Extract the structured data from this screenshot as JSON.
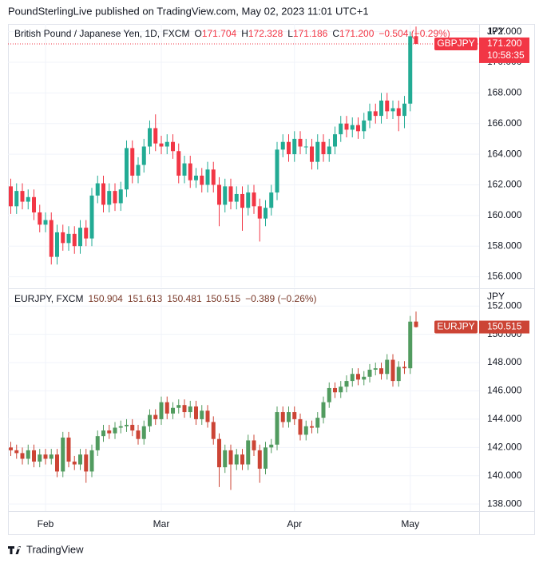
{
  "header": {
    "text": "PoundSterlingLive published on TradingView.com, May 02, 2023 11:01 UTC+1"
  },
  "footer": {
    "brand": "TradingView"
  },
  "chart_data": [
    {
      "type": "candlestick",
      "title": "British Pound / Japanese Yen, 1D, FXCM",
      "legend": [
        {
          "label": "O",
          "value": "171.704"
        },
        {
          "label": "H",
          "value": "172.328"
        },
        {
          "label": "L",
          "value": "171.186"
        },
        {
          "label": "C",
          "value": "171.200"
        }
      ],
      "change": "−0.504 (−0.29%)",
      "currency": "JPY",
      "symbol": "GBPJPY",
      "price_label": "171.200",
      "countdown": "10:58:35",
      "up_color": "#22ab94",
      "down_color": "#f23645",
      "last_price_line": true,
      "grid": true,
      "ylim": [
        155.3,
        172.5
      ],
      "yticks": [
        {
          "value": 156,
          "label": "156.000"
        },
        {
          "value": 158,
          "label": "158.000"
        },
        {
          "value": 160,
          "label": "160.000"
        },
        {
          "value": 162,
          "label": "162.000"
        },
        {
          "value": 164,
          "label": "164.000"
        },
        {
          "value": 166,
          "label": "166.000"
        },
        {
          "value": 168,
          "label": "168.000"
        },
        {
          "value": 170,
          "label": "170.000"
        },
        {
          "value": 172,
          "label": "172.000"
        }
      ],
      "open": [
        161.9,
        160.6,
        161.6,
        160.9,
        161.2,
        160.2,
        159.4,
        159.7,
        157.3,
        158.9,
        158.2,
        158.8,
        158.0,
        159.2,
        158.5,
        161.3,
        162.1,
        160.7,
        161.6,
        160.8,
        161.7,
        164.4,
        162.6,
        163.3,
        164.5,
        165.7,
        164.7,
        164.5,
        164.8,
        164.2,
        162.6,
        163.4,
        162.3,
        162.6,
        162.0,
        163.0,
        162.0,
        160.7,
        161.9,
        160.9,
        161.4,
        160.5,
        161.5,
        160.6,
        159.8,
        160.5,
        161.5,
        164.3,
        164.8,
        164.0,
        165.0,
        164.5,
        164.5,
        163.5,
        164.8,
        164.0,
        164.5,
        165.3,
        166.0,
        165.6,
        165.9,
        165.5,
        166.2,
        166.8,
        166.5,
        167.5,
        166.8,
        167.0,
        166.5,
        167.3,
        171.704
      ],
      "high": [
        162.4,
        162.1,
        162.1,
        161.7,
        161.7,
        160.7,
        160.2,
        160.2,
        159.4,
        159.4,
        159.3,
        159.3,
        159.7,
        159.7,
        161.8,
        162.6,
        162.6,
        162.1,
        162.1,
        162.2,
        164.9,
        164.9,
        163.8,
        165.0,
        166.2,
        166.6,
        165.2,
        165.3,
        165.3,
        164.7,
        163.9,
        163.9,
        163.1,
        163.1,
        163.5,
        163.5,
        162.5,
        162.4,
        162.4,
        161.9,
        161.9,
        162.0,
        162.0,
        161.1,
        161.0,
        162.0,
        164.8,
        165.3,
        165.3,
        165.5,
        165.5,
        165.0,
        165.0,
        165.3,
        165.3,
        165.0,
        165.8,
        166.5,
        166.5,
        166.4,
        166.4,
        166.7,
        167.3,
        167.3,
        168.0,
        168.0,
        167.5,
        167.5,
        167.8,
        172.0,
        172.328
      ],
      "low": [
        160.1,
        160.1,
        160.4,
        160.4,
        159.7,
        158.9,
        158.9,
        156.8,
        156.8,
        157.7,
        157.7,
        157.5,
        157.5,
        158.0,
        158.0,
        160.8,
        160.2,
        160.2,
        160.3,
        160.3,
        161.2,
        162.1,
        162.1,
        162.8,
        164.0,
        164.2,
        164.0,
        164.0,
        163.7,
        162.1,
        162.1,
        161.8,
        161.8,
        161.5,
        161.5,
        161.5,
        159.3,
        160.2,
        160.4,
        160.4,
        159.0,
        160.0,
        160.1,
        158.3,
        159.3,
        160.0,
        161.0,
        163.8,
        163.5,
        163.5,
        164.0,
        164.0,
        163.0,
        163.0,
        163.5,
        163.5,
        164.0,
        164.8,
        165.1,
        165.1,
        165.0,
        165.0,
        165.7,
        166.0,
        166.0,
        166.3,
        166.3,
        165.5,
        165.7,
        166.8,
        171.186
      ],
      "close": [
        160.6,
        161.6,
        160.9,
        161.2,
        160.2,
        159.4,
        159.7,
        157.3,
        158.9,
        158.2,
        158.8,
        158.0,
        159.2,
        158.5,
        161.3,
        162.1,
        160.7,
        161.6,
        160.8,
        161.7,
        164.4,
        162.6,
        163.3,
        164.5,
        165.7,
        164.7,
        164.5,
        164.8,
        164.2,
        162.6,
        163.4,
        162.3,
        162.6,
        162.0,
        163.0,
        162.0,
        160.7,
        161.9,
        160.9,
        161.4,
        160.5,
        161.5,
        160.6,
        159.8,
        160.5,
        161.5,
        164.3,
        164.8,
        164.0,
        165.0,
        164.5,
        164.5,
        163.5,
        164.8,
        164.0,
        164.5,
        165.3,
        166.0,
        165.6,
        165.9,
        165.5,
        166.2,
        166.8,
        166.5,
        167.5,
        166.8,
        167.0,
        166.5,
        167.3,
        171.7,
        171.2
      ]
    },
    {
      "type": "candlestick",
      "title": "EURJPY, FXCM",
      "legend": [
        {
          "value": "150.904"
        },
        {
          "value": "151.613"
        },
        {
          "value": "150.481"
        },
        {
          "value": "150.515"
        }
      ],
      "change": "−0.389 (−0.26%)",
      "currency": "JPY",
      "symbol": "EURJPY",
      "price_label": "150.515",
      "up_color": "#519b5f",
      "down_color": "#cc4435",
      "last_price_line": false,
      "grid": true,
      "ylim": [
        137.5,
        153.2
      ],
      "yticks": [
        {
          "value": 138,
          "label": "138.000"
        },
        {
          "value": 140,
          "label": "140.000"
        },
        {
          "value": 142,
          "label": "142.000"
        },
        {
          "value": 144,
          "label": "144.000"
        },
        {
          "value": 146,
          "label": "146.000"
        },
        {
          "value": 148,
          "label": "148.000"
        },
        {
          "value": 150,
          "label": "150.000"
        },
        {
          "value": 152,
          "label": "152.000"
        }
      ],
      "categories": [
        null,
        null,
        null,
        null,
        null,
        null,
        "Feb",
        null,
        null,
        null,
        null,
        null,
        null,
        null,
        null,
        null,
        null,
        null,
        null,
        null,
        null,
        null,
        null,
        null,
        null,
        null,
        "Mar",
        null,
        null,
        null,
        null,
        null,
        null,
        null,
        null,
        null,
        null,
        null,
        null,
        null,
        null,
        null,
        null,
        null,
        null,
        null,
        null,
        null,
        null,
        "Apr",
        null,
        null,
        null,
        null,
        null,
        null,
        null,
        null,
        null,
        null,
        null,
        null,
        null,
        null,
        null,
        null,
        null,
        null,
        null,
        "May",
        null
      ],
      "open": [
        142.0,
        141.8,
        141.6,
        141.2,
        141.8,
        141.0,
        141.5,
        141.2,
        141.5,
        140.3,
        142.7,
        141.0,
        140.8,
        141.5,
        140.3,
        141.8,
        142.8,
        143.2,
        143.0,
        143.4,
        143.5,
        143.6,
        143.2,
        142.6,
        143.5,
        144.3,
        144.0,
        145.2,
        144.4,
        144.8,
        145.0,
        144.5,
        144.9,
        144.0,
        144.6,
        143.8,
        142.6,
        140.6,
        141.8,
        140.8,
        141.5,
        140.8,
        142.5,
        141.8,
        140.5,
        142.0,
        142.2,
        144.5,
        143.8,
        144.5,
        144.0,
        142.9,
        143.5,
        143.4,
        144.1,
        145.2,
        146.2,
        145.9,
        146.3,
        146.7,
        147.2,
        146.8,
        147.0,
        147.5,
        147.6,
        147.2,
        148.2,
        146.7,
        147.7,
        147.6,
        150.904
      ],
      "high": [
        142.4,
        142.2,
        142.0,
        142.2,
        142.2,
        141.9,
        141.9,
        141.9,
        141.9,
        143.1,
        143.1,
        141.4,
        141.9,
        141.9,
        142.2,
        143.2,
        143.6,
        143.6,
        143.8,
        143.9,
        144.0,
        144.0,
        143.6,
        143.9,
        144.7,
        144.7,
        145.6,
        145.6,
        145.2,
        145.4,
        145.4,
        145.3,
        145.3,
        145.0,
        145.0,
        144.2,
        143.0,
        142.2,
        142.2,
        141.9,
        141.9,
        142.9,
        142.9,
        142.2,
        142.4,
        142.6,
        144.9,
        144.9,
        144.9,
        144.9,
        144.4,
        143.9,
        143.9,
        144.5,
        145.6,
        146.6,
        146.6,
        146.7,
        147.1,
        147.6,
        147.6,
        147.4,
        147.9,
        148.0,
        148.0,
        148.6,
        148.6,
        148.1,
        148.1,
        151.3,
        151.613
      ],
      "low": [
        141.4,
        141.2,
        140.8,
        140.8,
        140.6,
        140.6,
        140.8,
        140.8,
        139.9,
        139.9,
        140.6,
        140.4,
        140.4,
        139.5,
        139.9,
        141.4,
        142.4,
        142.6,
        142.6,
        143.0,
        143.1,
        142.8,
        142.2,
        142.2,
        143.1,
        143.6,
        143.6,
        144.0,
        144.0,
        144.4,
        144.1,
        144.1,
        143.6,
        143.6,
        143.4,
        142.2,
        139.2,
        140.2,
        139.0,
        140.4,
        140.4,
        140.4,
        141.4,
        139.5,
        140.1,
        141.6,
        141.8,
        143.4,
        143.4,
        143.6,
        142.5,
        142.5,
        143.0,
        143.0,
        143.7,
        144.8,
        145.5,
        145.5,
        145.9,
        146.3,
        146.4,
        146.4,
        146.6,
        147.1,
        146.8,
        146.8,
        146.3,
        146.3,
        147.2,
        147.2,
        150.481
      ],
      "close": [
        141.8,
        141.6,
        141.2,
        141.8,
        141.0,
        141.5,
        141.2,
        141.5,
        140.3,
        142.7,
        141.0,
        140.8,
        141.5,
        140.3,
        141.8,
        142.8,
        143.2,
        143.0,
        143.4,
        143.5,
        143.6,
        143.2,
        142.6,
        143.5,
        144.3,
        144.0,
        145.2,
        144.4,
        144.8,
        145.0,
        144.5,
        144.9,
        144.0,
        144.6,
        143.8,
        142.6,
        140.6,
        141.8,
        140.8,
        141.5,
        140.8,
        142.5,
        141.8,
        140.5,
        142.0,
        142.2,
        144.5,
        143.8,
        144.5,
        144.0,
        142.9,
        143.5,
        143.4,
        144.1,
        145.2,
        146.2,
        145.9,
        146.3,
        146.7,
        147.2,
        146.8,
        147.0,
        147.5,
        147.6,
        147.2,
        148.2,
        146.7,
        147.7,
        147.6,
        150.9,
        150.515
      ]
    }
  ]
}
